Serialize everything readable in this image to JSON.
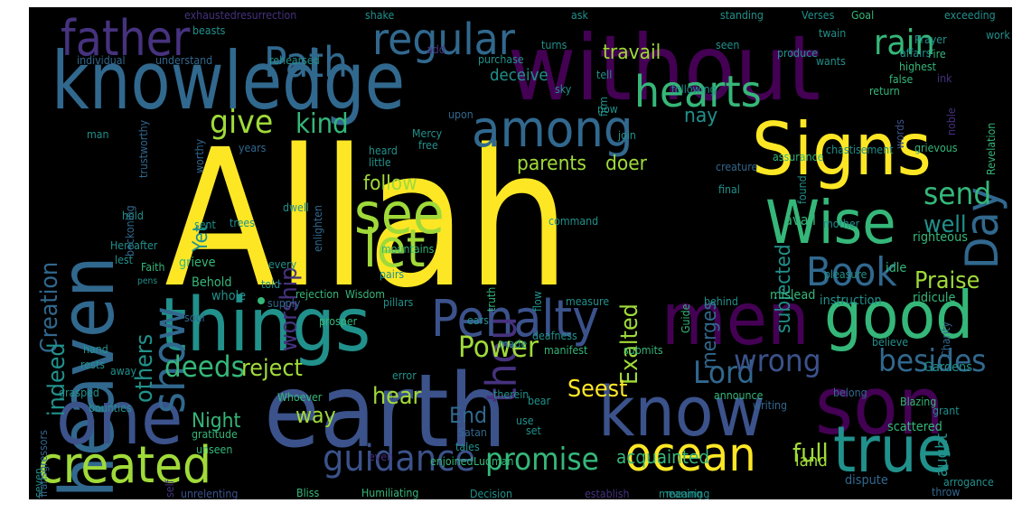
{
  "palette": {
    "background": "#000000",
    "yellow": "#fde725",
    "lime": "#a0da39",
    "green": "#4ac16d",
    "teal": "#1fa187",
    "cyan": "#277f8e",
    "blue": "#365c8d",
    "indigo": "#46327e",
    "purple": "#440154"
  },
  "words": [
    {
      "text": "Allah",
      "color": "#fde725"
    },
    {
      "text": "without",
      "color": "#440154"
    },
    {
      "text": "knowledge",
      "color": "#31688e"
    },
    {
      "text": "earth",
      "color": "#3b528b"
    },
    {
      "text": "Signs",
      "color": "#fde725"
    },
    {
      "text": "heaven",
      "color": "#31688e"
    },
    {
      "text": "things",
      "color": "#21918c"
    },
    {
      "text": "men",
      "color": "#440154"
    },
    {
      "text": "good",
      "color": "#35b779"
    },
    {
      "text": "one",
      "color": "#3b528b"
    },
    {
      "text": "son",
      "color": "#440154"
    },
    {
      "text": "true",
      "color": "#21918c"
    },
    {
      "text": "know",
      "color": "#3b528b"
    },
    {
      "text": "created",
      "color": "#a0da39"
    },
    {
      "text": "Wise",
      "color": "#35b779"
    },
    {
      "text": "Penalty",
      "color": "#3b528b"
    },
    {
      "text": "ocean",
      "color": "#fde725"
    },
    {
      "text": "father",
      "color": "#46327e"
    },
    {
      "text": "among",
      "color": "#31688e"
    },
    {
      "text": "see",
      "color": "#a0da39"
    },
    {
      "text": "let",
      "color": "#a0da39"
    },
    {
      "text": "thou",
      "color": "#46327e"
    },
    {
      "text": "regular",
      "color": "#31688e"
    },
    {
      "text": "hearts",
      "color": "#35b779"
    },
    {
      "text": "Path",
      "color": "#31688e"
    },
    {
      "text": "Day",
      "color": "#31688e"
    },
    {
      "text": "show",
      "color": "#31688e"
    },
    {
      "text": "Book",
      "color": "#31688e"
    },
    {
      "text": "guidance",
      "color": "#3b528b"
    },
    {
      "text": "promise",
      "color": "#35b779"
    },
    {
      "text": "rain",
      "color": "#35b779"
    },
    {
      "text": "give",
      "color": "#a0da39"
    },
    {
      "text": "kind",
      "color": "#35b779"
    },
    {
      "text": "Power",
      "color": "#a0da39"
    },
    {
      "text": "deeds",
      "color": "#35b779"
    },
    {
      "text": "Lord",
      "color": "#31688e"
    },
    {
      "text": "wrong",
      "color": "#3b528b"
    },
    {
      "text": "besides",
      "color": "#31688e"
    },
    {
      "text": "Creation",
      "color": "#31688e"
    },
    {
      "text": "indeed",
      "color": "#21918c"
    },
    {
      "text": "others",
      "color": "#21918c"
    },
    {
      "text": "worship",
      "color": "#46327e"
    },
    {
      "text": "Exalted",
      "color": "#a0da39"
    },
    {
      "text": "send",
      "color": "#35b779"
    },
    {
      "text": "well",
      "color": "#21918c"
    },
    {
      "text": "Praise",
      "color": "#a0da39"
    },
    {
      "text": "reject",
      "color": "#a0da39"
    },
    {
      "text": "hear",
      "color": "#a0da39"
    },
    {
      "text": "Seest",
      "color": "#fde725"
    },
    {
      "text": "way",
      "color": "#a0da39"
    },
    {
      "text": "full",
      "color": "#a0da39"
    },
    {
      "text": "End",
      "color": "#31688e"
    },
    {
      "text": "Night",
      "color": "#35b779"
    },
    {
      "text": "follow",
      "color": "#a0da39"
    },
    {
      "text": "parents",
      "color": "#a0da39"
    },
    {
      "text": "doer",
      "color": "#a0da39"
    },
    {
      "text": "nay",
      "color": "#21918c"
    },
    {
      "text": "travail",
      "color": "#a0da39"
    },
    {
      "text": "deceive",
      "color": "#21918c"
    },
    {
      "text": "subjected",
      "color": "#21918c"
    },
    {
      "text": "merges",
      "color": "#31688e"
    },
    {
      "text": "acquainted",
      "color": "#35b779"
    },
    {
      "text": "land",
      "color": "#a0da39"
    },
    {
      "text": "Yet",
      "color": "#21918c"
    },
    {
      "text": "aught",
      "color": "#21918c"
    },
    {
      "text": "avail",
      "color": "#35b779"
    },
    {
      "text": "righteous",
      "color": "#35b779"
    },
    {
      "text": "idle",
      "color": "#35b779"
    },
    {
      "text": "mislead",
      "color": "#35b779"
    },
    {
      "text": "ridicule",
      "color": "#35b779"
    },
    {
      "text": "instruction",
      "color": "#21918c"
    },
    {
      "text": "Gardens",
      "color": "#21918c"
    },
    {
      "text": "scattered",
      "color": "#35b779"
    },
    {
      "text": "arrogance",
      "color": "#21918c"
    },
    {
      "text": "dispute",
      "color": "#31688e"
    },
    {
      "text": "throw",
      "color": "#31688e"
    },
    {
      "text": "meaning",
      "color": "#21918c"
    },
    {
      "text": "Decision",
      "color": "#21918c"
    },
    {
      "text": "Humiliating",
      "color": "#35b779"
    },
    {
      "text": "Bliss",
      "color": "#35b779"
    },
    {
      "text": "unrelenting",
      "color": "#3b528b"
    },
    {
      "text": "seven",
      "color": "#21918c"
    },
    {
      "text": "Transgressors",
      "color": "#31688e"
    },
    {
      "text": "self",
      "color": "#46327e"
    },
    {
      "text": "grieve",
      "color": "#35b779"
    },
    {
      "text": "Behold",
      "color": "#35b779"
    },
    {
      "text": "whole",
      "color": "#21918c"
    },
    {
      "text": "Faith",
      "color": "#35b779"
    },
    {
      "text": "Hereafter",
      "color": "#21918c"
    },
    {
      "text": "lest",
      "color": "#21918c"
    },
    {
      "text": "pens",
      "color": "#21918c"
    },
    {
      "text": "every",
      "color": "#21918c"
    },
    {
      "text": "told",
      "color": "#21918c"
    },
    {
      "text": "dwell",
      "color": "#21918c"
    },
    {
      "text": "enlighten",
      "color": "#31688e"
    },
    {
      "text": "rejection",
      "color": "#35b779"
    },
    {
      "text": "Wisdom",
      "color": "#35b779"
    },
    {
      "text": "trees",
      "color": "#21918c"
    },
    {
      "text": "mountains",
      "color": "#35b779"
    },
    {
      "text": "pairs",
      "color": "#21918c"
    },
    {
      "text": "pillars",
      "color": "#21918c"
    },
    {
      "text": "truth",
      "color": "#35b779"
    },
    {
      "text": "flow",
      "color": "#21918c"
    },
    {
      "text": "command",
      "color": "#21918c"
    },
    {
      "text": "Guide",
      "color": "#35b779"
    },
    {
      "text": "pleasure",
      "color": "#21918c"
    },
    {
      "text": "mother",
      "color": "#21918c"
    },
    {
      "text": "final",
      "color": "#21918c"
    },
    {
      "text": "creature",
      "color": "#31688e"
    },
    {
      "text": "assurance",
      "color": "#35b779"
    },
    {
      "text": "found",
      "color": "#21918c"
    },
    {
      "text": "chastisement",
      "color": "#21918c"
    },
    {
      "text": "grievous",
      "color": "#35b779"
    },
    {
      "text": "Revelation",
      "color": "#35b779"
    },
    {
      "text": "noble",
      "color": "#46327e"
    },
    {
      "text": "ink",
      "color": "#46327e"
    },
    {
      "text": "return",
      "color": "#35b779"
    },
    {
      "text": "false",
      "color": "#35b779"
    },
    {
      "text": "highest",
      "color": "#35b779"
    },
    {
      "text": "Fire",
      "color": "#35b779"
    },
    {
      "text": "Prayer",
      "color": "#21918c"
    },
    {
      "text": "affairs",
      "color": "#21918c"
    },
    {
      "text": "twain",
      "color": "#21918c"
    },
    {
      "text": "words",
      "color": "#3b528b"
    },
    {
      "text": "produce",
      "color": "#21918c"
    },
    {
      "text": "wants",
      "color": "#21918c"
    },
    {
      "text": "seen",
      "color": "#21918c"
    },
    {
      "text": "following",
      "color": "#21918c"
    },
    {
      "text": "firm",
      "color": "#21918c"
    },
    {
      "text": "tell",
      "color": "#21918c"
    },
    {
      "text": "sky",
      "color": "#21918c"
    },
    {
      "text": "now",
      "color": "#21918c"
    },
    {
      "text": "upon",
      "color": "#31688e"
    },
    {
      "text": "join",
      "color": "#21918c"
    },
    {
      "text": "Mercy",
      "color": "#21918c"
    },
    {
      "text": "free",
      "color": "#21918c"
    },
    {
      "text": "heard",
      "color": "#21918c"
    },
    {
      "text": "little",
      "color": "#21918c"
    },
    {
      "text": "worthy",
      "color": "#31688e"
    },
    {
      "text": "years",
      "color": "#31688e"
    },
    {
      "text": "trustworthy",
      "color": "#31688e"
    },
    {
      "text": "man",
      "color": "#21918c"
    },
    {
      "text": "sent",
      "color": "#21918c"
    },
    {
      "text": "hold",
      "color": "#21918c"
    },
    {
      "text": "beckoning",
      "color": "#31688e"
    },
    {
      "text": "individual",
      "color": "#31688e"
    },
    {
      "text": "understand",
      "color": "#31688e"
    },
    {
      "text": "rehearsed",
      "color": "#21918c"
    },
    {
      "text": "add",
      "color": "#46327e"
    },
    {
      "text": "purchase",
      "color": "#21918c"
    },
    {
      "text": "turns",
      "color": "#21918c"
    },
    {
      "text": "beasts",
      "color": "#21918c"
    },
    {
      "text": "exhaustedresurrection",
      "color": "#46327e"
    },
    {
      "text": "shake",
      "color": "#21918c"
    },
    {
      "text": "ask",
      "color": "#21918c"
    },
    {
      "text": "standing",
      "color": "#21918c"
    },
    {
      "text": "Verses",
      "color": "#21918c"
    },
    {
      "text": "Goal",
      "color": "#35b779"
    },
    {
      "text": "exceeding",
      "color": "#21918c"
    },
    {
      "text": "work",
      "color": "#21918c"
    },
    {
      "text": "supply",
      "color": "#31688e"
    },
    {
      "text": "prosper",
      "color": "#35b779"
    },
    {
      "text": "soul",
      "color": "#31688e"
    },
    {
      "text": "ears",
      "color": "#21918c"
    },
    {
      "text": "measure",
      "color": "#21918c"
    },
    {
      "text": "behind",
      "color": "#21918c"
    },
    {
      "text": "deafness",
      "color": "#21918c"
    },
    {
      "text": "manifest",
      "color": "#35b779"
    },
    {
      "text": "made",
      "color": "#21918c"
    },
    {
      "text": "submits",
      "color": "#35b779"
    },
    {
      "text": "believe",
      "color": "#21918c"
    },
    {
      "text": "Charity",
      "color": "#31688e"
    },
    {
      "text": "grant",
      "color": "#21918c"
    },
    {
      "text": "belong",
      "color": "#31688e"
    },
    {
      "text": "writing",
      "color": "#31688e"
    },
    {
      "text": "announce",
      "color": "#35b779"
    },
    {
      "text": "Blazing",
      "color": "#35b779"
    },
    {
      "text": "bear",
      "color": "#21918c"
    },
    {
      "text": "therein",
      "color": "#21918c"
    },
    {
      "text": "error",
      "color": "#21918c"
    },
    {
      "text": "use",
      "color": "#21918c"
    },
    {
      "text": "set",
      "color": "#21918c"
    },
    {
      "text": "Satan",
      "color": "#31688e"
    },
    {
      "text": "tales",
      "color": "#21918c"
    },
    {
      "text": "Luqman",
      "color": "#35b779"
    },
    {
      "text": "enjoined",
      "color": "#35b779"
    },
    {
      "text": "Whoever",
      "color": "#35b779"
    },
    {
      "text": "even",
      "color": "#46327e"
    },
    {
      "text": "gratitude",
      "color": "#35b779"
    },
    {
      "text": "unseen",
      "color": "#35b779"
    },
    {
      "text": "hand",
      "color": "#21918c"
    },
    {
      "text": "rests",
      "color": "#21918c"
    },
    {
      "text": "away",
      "color": "#21918c"
    },
    {
      "text": "grasped",
      "color": "#21918c"
    },
    {
      "text": "bounties",
      "color": "#21918c"
    },
    {
      "text": "establish",
      "color": "#46327e"
    },
    {
      "text": "meaning",
      "color": "#21918c"
    }
  ]
}
